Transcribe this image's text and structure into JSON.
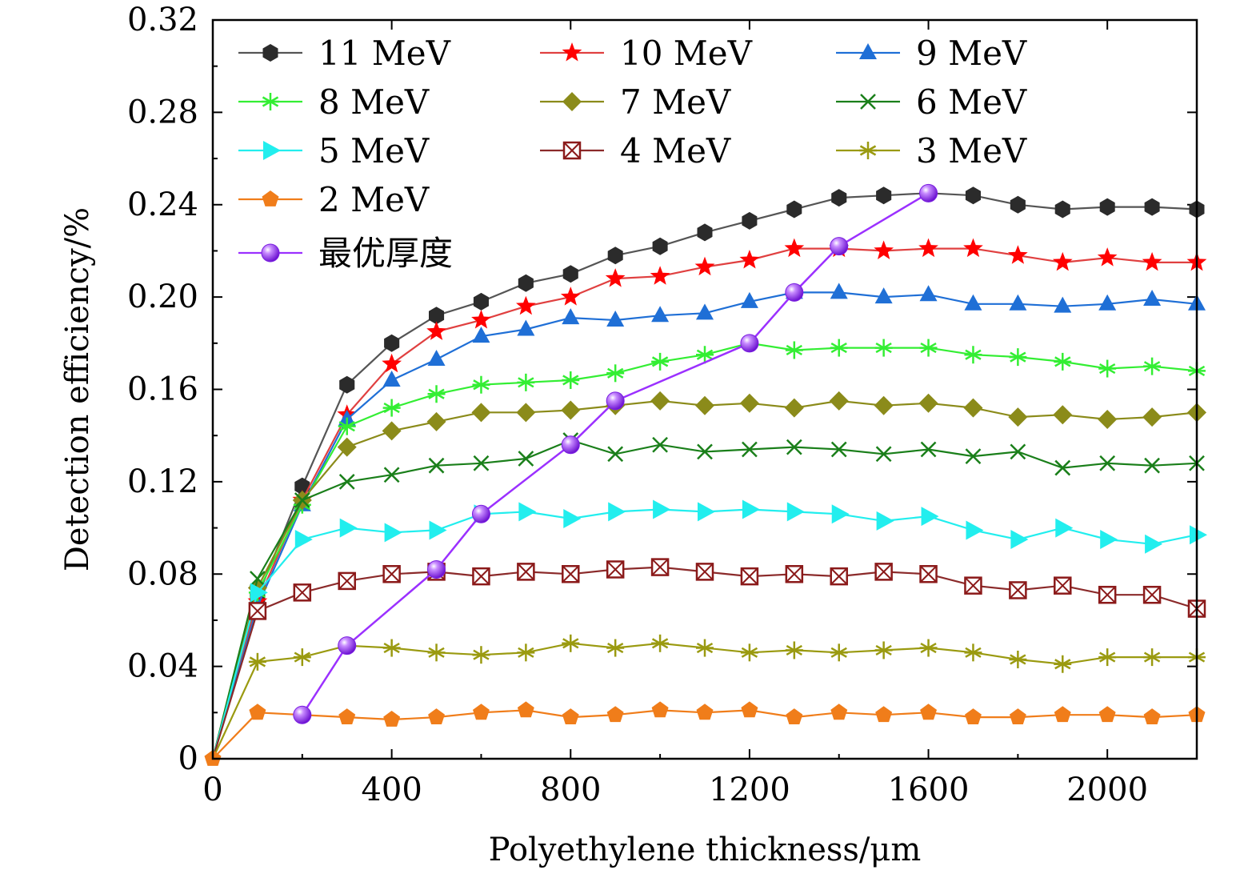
{
  "chart_data": {
    "type": "line",
    "title": "",
    "xlabel": "Polyethylene thickness/μm",
    "ylabel": "Detection efficiency/%",
    "xlim": [
      0,
      2200
    ],
    "ylim": [
      0,
      0.32
    ],
    "xticks": [
      0,
      400,
      800,
      1200,
      1600,
      2000
    ],
    "xtick_labels": [
      "0",
      "400",
      "800",
      "1200",
      "1600",
      "2000"
    ],
    "yticks": [
      0,
      0.04,
      0.08,
      0.12,
      0.16,
      0.2,
      0.24,
      0.28,
      0.32
    ],
    "ytick_labels": [
      "0",
      "0.04",
      "0.08",
      "0.12",
      "0.16",
      "0.20",
      "0.24",
      "0.28",
      "0.32"
    ],
    "grid": false,
    "legend_position": "top-left",
    "x": [
      0,
      100,
      200,
      300,
      400,
      500,
      600,
      700,
      800,
      900,
      1000,
      1100,
      1200,
      1300,
      1400,
      1500,
      1600,
      1700,
      1800,
      1900,
      2000,
      2100,
      2200
    ],
    "series": [
      {
        "name": "11 MeV",
        "color": "#2b2b2b",
        "line_color": "#555555",
        "marker": "hexagon",
        "values": [
          0,
          0.07,
          0.118,
          0.162,
          0.18,
          0.192,
          0.198,
          0.206,
          0.21,
          0.218,
          0.222,
          0.228,
          0.233,
          0.238,
          0.243,
          0.244,
          0.245,
          0.244,
          0.24,
          0.238,
          0.239,
          0.239,
          0.238
        ]
      },
      {
        "name": "10 MeV",
        "color": "#ff0000",
        "line_color": "#e04040",
        "marker": "star",
        "values": [
          0,
          0.068,
          0.112,
          0.149,
          0.171,
          0.185,
          0.19,
          0.196,
          0.2,
          0.208,
          0.209,
          0.213,
          0.216,
          0.221,
          0.221,
          0.22,
          0.221,
          0.221,
          0.218,
          0.215,
          0.217,
          0.215,
          0.215
        ]
      },
      {
        "name": "9 MeV",
        "color": "#1f6fd6",
        "line_color": "#1f6fd6",
        "marker": "triangle-up",
        "values": [
          0,
          0.066,
          0.11,
          0.147,
          0.164,
          0.173,
          0.183,
          0.186,
          0.191,
          0.19,
          0.192,
          0.193,
          0.198,
          0.202,
          0.202,
          0.2,
          0.201,
          0.197,
          0.197,
          0.196,
          0.197,
          0.199,
          0.197
        ]
      },
      {
        "name": "8 MeV",
        "color": "#33ee33",
        "line_color": "#33ee33",
        "marker": "asterisk",
        "values": [
          0,
          0.072,
          0.11,
          0.144,
          0.152,
          0.158,
          0.162,
          0.163,
          0.164,
          0.167,
          0.172,
          0.175,
          0.18,
          0.177,
          0.178,
          0.178,
          0.178,
          0.175,
          0.174,
          0.172,
          0.169,
          0.17,
          0.168
        ]
      },
      {
        "name": "7 MeV",
        "color": "#8b8b1a",
        "line_color": "#8b8b1a",
        "marker": "diamond",
        "values": [
          0,
          0.074,
          0.112,
          0.135,
          0.142,
          0.146,
          0.15,
          0.15,
          0.151,
          0.153,
          0.155,
          0.153,
          0.154,
          0.152,
          0.155,
          0.153,
          0.154,
          0.152,
          0.148,
          0.149,
          0.147,
          0.148,
          0.15
        ]
      },
      {
        "name": "6 MeV",
        "color": "#1a7f1a",
        "line_color": "#1a7f1a",
        "marker": "x",
        "values": [
          0,
          0.078,
          0.112,
          0.12,
          0.123,
          0.127,
          0.128,
          0.13,
          0.138,
          0.132,
          0.136,
          0.133,
          0.134,
          0.135,
          0.134,
          0.132,
          0.134,
          0.131,
          0.133,
          0.126,
          0.128,
          0.127,
          0.128
        ]
      },
      {
        "name": "5 MeV",
        "color": "#22eeee",
        "line_color": "#22eeee",
        "marker": "triangle-right",
        "values": [
          0,
          0.072,
          0.095,
          0.1,
          0.098,
          0.099,
          0.106,
          0.107,
          0.104,
          0.107,
          0.108,
          0.107,
          0.108,
          0.107,
          0.106,
          0.103,
          0.105,
          0.099,
          0.095,
          0.1,
          0.095,
          0.093,
          0.097
        ]
      },
      {
        "name": "4 MeV",
        "color": "#8b1a1a",
        "line_color": "#8b2a2a",
        "marker": "square-x",
        "values": [
          0,
          0.064,
          0.072,
          0.077,
          0.08,
          0.081,
          0.079,
          0.081,
          0.08,
          0.082,
          0.083,
          0.081,
          0.079,
          0.08,
          0.079,
          0.081,
          0.08,
          0.075,
          0.073,
          0.075,
          0.071,
          0.071,
          0.065
        ]
      },
      {
        "name": "3 MeV",
        "color": "#9a9a10",
        "line_color": "#9a9a10",
        "marker": "asterisk",
        "values": [
          0,
          0.042,
          0.044,
          0.049,
          0.048,
          0.046,
          0.045,
          0.046,
          0.05,
          0.048,
          0.05,
          0.048,
          0.046,
          0.047,
          0.046,
          0.047,
          0.048,
          0.046,
          0.043,
          0.041,
          0.044,
          0.044,
          0.044
        ]
      },
      {
        "name": "2 MeV",
        "color": "#f07d1a",
        "line_color": "#f07d1a",
        "marker": "pentagon",
        "values": [
          0,
          0.02,
          0.019,
          0.018,
          0.017,
          0.018,
          0.02,
          0.021,
          0.018,
          0.019,
          0.021,
          0.02,
          0.021,
          0.018,
          0.02,
          0.019,
          0.02,
          0.018,
          0.018,
          0.019,
          0.019,
          0.018,
          0.019
        ]
      }
    ],
    "optimal_series": {
      "name": "最优厚度",
      "color": "#9b30ff",
      "marker": "sphere",
      "points": [
        {
          "x": 200,
          "y": 0.019
        },
        {
          "x": 300,
          "y": 0.049
        },
        {
          "x": 500,
          "y": 0.082
        },
        {
          "x": 600,
          "y": 0.106
        },
        {
          "x": 800,
          "y": 0.136
        },
        {
          "x": 900,
          "y": 0.155
        },
        {
          "x": 1200,
          "y": 0.18
        },
        {
          "x": 1300,
          "y": 0.202
        },
        {
          "x": 1400,
          "y": 0.222
        },
        {
          "x": 1600,
          "y": 0.245
        }
      ]
    }
  }
}
